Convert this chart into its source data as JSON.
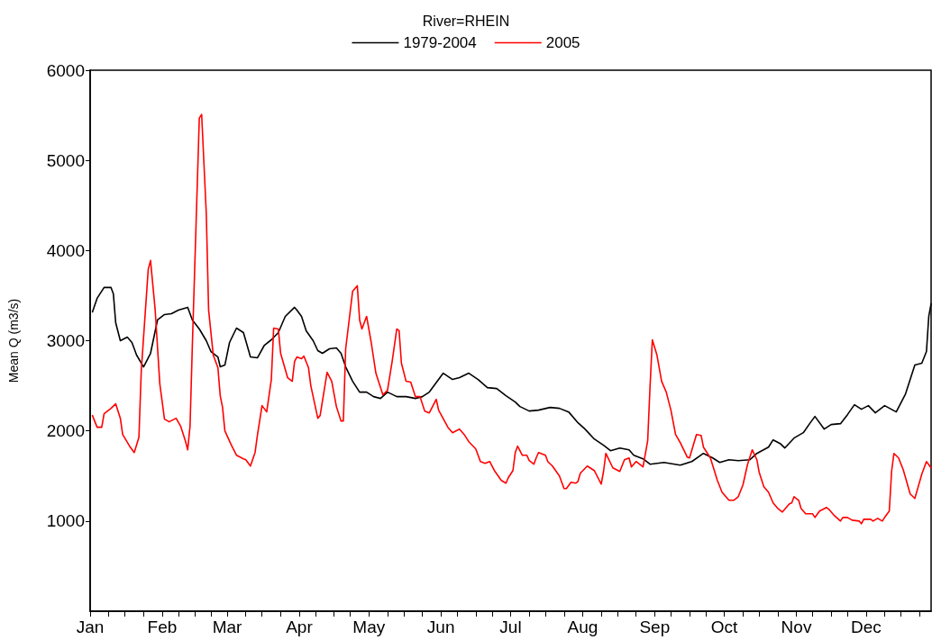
{
  "chart_data": {
    "type": "line",
    "legend_title": "River=RHEIN",
    "ylabel": "Mean Q (m3/s)",
    "xlim": [
      "--01-01",
      "--12-29"
    ],
    "xticks": [
      {
        "value": "--01-01",
        "label": "Jan"
      },
      {
        "value": "--01-09",
        "label": null
      },
      {
        "value": "--01-16",
        "label": null
      },
      {
        "value": "--01-24",
        "label": null
      },
      {
        "value": "--02-01",
        "label": "Feb"
      },
      {
        "value": "--02-08",
        "label": null
      },
      {
        "value": "--02-15",
        "label": null
      },
      {
        "value": "--02-22",
        "label": null
      },
      {
        "value": "--03-01",
        "label": "Mar"
      },
      {
        "value": "--03-09",
        "label": null
      },
      {
        "value": "--03-16",
        "label": null
      },
      {
        "value": "--03-24",
        "label": null
      },
      {
        "value": "--04-01",
        "label": "Apr"
      },
      {
        "value": "--04-08",
        "label": null
      },
      {
        "value": "--04-16",
        "label": null
      },
      {
        "value": "--04-23",
        "label": null
      },
      {
        "value": "--05-01",
        "label": "May"
      },
      {
        "value": "--05-09",
        "label": null
      },
      {
        "value": "--05-16",
        "label": null
      },
      {
        "value": "--05-24",
        "label": null
      },
      {
        "value": "--06-01",
        "label": "Jun"
      },
      {
        "value": "--06-08",
        "label": null
      },
      {
        "value": "--06-16",
        "label": null
      },
      {
        "value": "--06-23",
        "label": null
      },
      {
        "value": "--07-01",
        "label": "Jul"
      },
      {
        "value": "--07-09",
        "label": null
      },
      {
        "value": "--07-16",
        "label": null
      },
      {
        "value": "--07-24",
        "label": null
      },
      {
        "value": "--08-01",
        "label": "Aug"
      },
      {
        "value": "--08-09",
        "label": null
      },
      {
        "value": "--08-16",
        "label": null
      },
      {
        "value": "--08-24",
        "label": null
      },
      {
        "value": "--09-01",
        "label": "Sep"
      },
      {
        "value": "--09-08",
        "label": null
      },
      {
        "value": "--09-16",
        "label": null
      },
      {
        "value": "--09-23",
        "label": null
      },
      {
        "value": "--10-01",
        "label": "Oct"
      },
      {
        "value": "--10-09",
        "label": null
      },
      {
        "value": "--10-16",
        "label": null
      },
      {
        "value": "--10-24",
        "label": null
      },
      {
        "value": "--11-01",
        "label": "Nov"
      },
      {
        "value": "--11-08",
        "label": null
      },
      {
        "value": "--11-16",
        "label": null
      },
      {
        "value": "--11-23",
        "label": null
      },
      {
        "value": "--12-01",
        "label": "Dec"
      },
      {
        "value": "--12-09",
        "label": null
      },
      {
        "value": "--12-16",
        "label": null
      },
      {
        "value": "--12-24",
        "label": null
      }
    ],
    "ylim": [
      0,
      6000
    ],
    "yticks": [
      1000,
      2000,
      3000,
      4000,
      5000,
      6000
    ],
    "grid": false,
    "legend": "top",
    "marker": "none",
    "line_style": "solid",
    "series": [
      {
        "name": "1979-2004",
        "color": "#000000",
        "x": [
          "--01-02",
          "--01-04",
          "--01-07",
          "--01-10",
          "--01-11",
          "--01-12",
          "--01-14",
          "--01-17",
          "--01-19",
          "--01-21",
          "--01-24",
          "--01-27",
          "--01-30",
          "--02-02",
          "--02-05",
          "--02-08",
          "--02-12",
          "--02-14",
          "--02-17",
          "--02-20",
          "--02-22",
          "--02-25",
          "--02-26",
          "--02-28",
          "--03-02",
          "--03-05",
          "--03-08",
          "--03-11",
          "--03-14",
          "--03-17",
          "--03-20",
          "--03-23",
          "--03-26",
          "--03-30",
          "--03-31",
          "--04-02",
          "--04-04",
          "--04-07",
          "--04-09",
          "--04-11",
          "--04-14",
          "--04-17",
          "--04-19",
          "--04-21",
          "--04-24",
          "--04-27",
          "--04-30",
          "--05-03",
          "--05-06",
          "--05-09",
          "--05-13",
          "--05-17",
          "--05-21",
          "--05-24",
          "--05-27",
          "--05-31",
          "--06-02",
          "--06-06",
          "--06-09",
          "--06-13",
          "--06-17",
          "--06-21",
          "--06-25",
          "--06-29",
          "--07-03",
          "--07-05",
          "--07-09",
          "--07-13",
          "--07-18",
          "--07-22",
          "--07-26",
          "--07-30",
          "--08-02",
          "--08-06",
          "--08-10",
          "--08-13",
          "--08-17",
          "--08-21",
          "--08-23",
          "--08-27",
          "--08-30",
          "--09-05",
          "--09-12",
          "--09-17",
          "--09-22",
          "--09-26",
          "--09-29",
          "--10-03",
          "--10-07",
          "--10-12",
          "--10-15",
          "--10-20",
          "--10-22",
          "--10-25",
          "--10-27",
          "--10-31",
          "--11-04",
          "--11-07",
          "--11-09",
          "--11-13",
          "--11-16",
          "--11-20",
          "--11-23",
          "--11-26",
          "--11-29",
          "--12-02",
          "--12-05",
          "--12-09",
          "--12-14",
          "--12-18",
          "--12-22",
          "--12-25",
          "--12-27",
          "--12-28",
          "--12-29"
        ],
        "values": [
          3320,
          3470,
          3590,
          3590,
          3520,
          3200,
          3000,
          3040,
          2980,
          2840,
          2710,
          2860,
          3230,
          3290,
          3300,
          3340,
          3370,
          3230,
          3130,
          3000,
          2880,
          2820,
          2710,
          2730,
          2980,
          3140,
          3090,
          2820,
          2810,
          2950,
          3010,
          3090,
          3270,
          3370,
          3340,
          3270,
          3110,
          3000,
          2890,
          2860,
          2910,
          2920,
          2860,
          2710,
          2550,
          2430,
          2430,
          2380,
          2360,
          2430,
          2380,
          2380,
          2360,
          2380,
          2430,
          2570,
          2640,
          2570,
          2590,
          2640,
          2570,
          2480,
          2470,
          2390,
          2320,
          2270,
          2220,
          2230,
          2260,
          2250,
          2210,
          2090,
          2020,
          1910,
          1840,
          1780,
          1810,
          1790,
          1730,
          1690,
          1630,
          1650,
          1620,
          1660,
          1750,
          1700,
          1650,
          1680,
          1670,
          1680,
          1750,
          1820,
          1900,
          1860,
          1810,
          1920,
          1980,
          2090,
          2160,
          2020,
          2070,
          2080,
          2180,
          2290,
          2240,
          2280,
          2200,
          2280,
          2210,
          2410,
          2730,
          2750,
          2880,
          3270,
          3410
        ]
      },
      {
        "name": "2005",
        "color": "#ff0000",
        "x": [
          "--01-02",
          "--01-04",
          "--01-06",
          "--01-07",
          "--01-10",
          "--01-12",
          "--01-14",
          "--01-15",
          "--01-18",
          "--01-20",
          "--01-22",
          "--01-23",
          "--01-26",
          "--01-27",
          "--01-29",
          "--01-31",
          "--02-02",
          "--02-04",
          "--02-07",
          "--02-09",
          "--02-11",
          "--02-12",
          "--02-13",
          "--02-14",
          "--02-17",
          "--02-18",
          "--02-20",
          "--02-21",
          "--02-23",
          "--02-25",
          "--02-26",
          "--02-27",
          "--02-28",
          "--03-03",
          "--03-05",
          "--03-08",
          "--03-09",
          "--03-11",
          "--03-13",
          "--03-14",
          "--03-16",
          "--03-18",
          "--03-20",
          "--03-21",
          "--03-23",
          "--03-24",
          "--03-27",
          "--03-29",
          "--03-30",
          "--03-31",
          "--04-02",
          "--04-03",
          "--04-05",
          "--04-06",
          "--04-09",
          "--04-10",
          "--04-13",
          "--04-15",
          "--04-17",
          "--04-19",
          "--04-20",
          "--04-21",
          "--04-24",
          "--04-26",
          "--04-27",
          "--04-28",
          "--04-30",
          "--05-02",
          "--05-04",
          "--05-07",
          "--05-09",
          "--05-11",
          "--05-13",
          "--05-14",
          "--05-15",
          "--05-17",
          "--05-19",
          "--05-21",
          "--05-23",
          "--05-25",
          "--05-27",
          "--05-30",
          "--05-31",
          "--06-04",
          "--06-06",
          "--06-09",
          "--06-11",
          "--06-13",
          "--06-16",
          "--06-18",
          "--06-20",
          "--06-22",
          "--06-24",
          "--06-27",
          "--06-29",
          "--06-30",
          "--07-02",
          "--07-03",
          "--07-04",
          "--07-06",
          "--07-08",
          "--07-09",
          "--07-11",
          "--07-12",
          "--07-13",
          "--07-16",
          "--07-17",
          "--07-19",
          "--07-22",
          "--07-24",
          "--07-25",
          "--07-27",
          "--07-29",
          "--07-30",
          "--07-31",
          "--08-03",
          "--08-06",
          "--08-08",
          "--08-09",
          "--08-10",
          "--08-11",
          "--08-14",
          "--08-17",
          "--08-19",
          "--08-21",
          "--08-22",
          "--08-24",
          "--08-27",
          "--08-29",
          "--08-30",
          "--08-31",
          "--09-02",
          "--09-04",
          "--09-06",
          "--09-08",
          "--09-10",
          "--09-12",
          "--09-15",
          "--09-16",
          "--09-19",
          "--09-21",
          "--09-22",
          "--09-25",
          "--09-28",
          "--09-30",
          "--10-03",
          "--10-05",
          "--10-07",
          "--10-09",
          "--10-11",
          "--10-13",
          "--10-15",
          "--10-16",
          "--10-18",
          "--10-20",
          "--10-22",
          "--10-24",
          "--10-26",
          "--10-29",
          "--10-30",
          "--10-31",
          "--11-02",
          "--11-03",
          "--11-05",
          "--11-08",
          "--11-09",
          "--11-11",
          "--11-14",
          "--11-15",
          "--11-17",
          "--11-20",
          "--11-21",
          "--11-23",
          "--11-25",
          "--11-28",
          "--11-29",
          "--11-30",
          "--12-03",
          "--12-04",
          "--12-06",
          "--12-08",
          "--12-09",
          "--12-11",
          "--12-12",
          "--12-13",
          "--12-15",
          "--12-17",
          "--12-20",
          "--12-22",
          "--12-25",
          "--12-27",
          "--12-29"
        ],
        "values": [
          2170,
          2040,
          2040,
          2190,
          2250,
          2300,
          2140,
          1960,
          1830,
          1760,
          1930,
          2660,
          3790,
          3890,
          3340,
          2520,
          2130,
          2100,
          2140,
          2050,
          1890,
          1790,
          2050,
          2950,
          5470,
          5510,
          4410,
          3340,
          2840,
          2700,
          2390,
          2260,
          2000,
          1830,
          1730,
          1690,
          1680,
          1610,
          1760,
          1950,
          2280,
          2210,
          2570,
          3140,
          3130,
          2860,
          2590,
          2550,
          2770,
          2820,
          2800,
          2830,
          2700,
          2500,
          2140,
          2170,
          2650,
          2550,
          2270,
          2110,
          2110,
          2910,
          3550,
          3610,
          3230,
          3130,
          3270,
          2980,
          2640,
          2400,
          2450,
          2770,
          3130,
          3110,
          2750,
          2550,
          2540,
          2380,
          2380,
          2220,
          2200,
          2350,
          2230,
          2040,
          1980,
          2020,
          1960,
          1880,
          1800,
          1660,
          1640,
          1660,
          1560,
          1450,
          1420,
          1480,
          1560,
          1760,
          1830,
          1730,
          1730,
          1670,
          1630,
          1700,
          1760,
          1730,
          1660,
          1610,
          1500,
          1360,
          1360,
          1430,
          1420,
          1440,
          1530,
          1610,
          1560,
          1460,
          1410,
          1550,
          1750,
          1590,
          1550,
          1680,
          1700,
          1600,
          1660,
          1600,
          1890,
          2480,
          3010,
          2840,
          2550,
          2430,
          2230,
          1960,
          1870,
          1710,
          1700,
          1960,
          1950,
          1820,
          1700,
          1450,
          1320,
          1230,
          1230,
          1270,
          1400,
          1630,
          1790,
          1680,
          1540,
          1380,
          1320,
          1200,
          1140,
          1100,
          1190,
          1200,
          1270,
          1230,
          1140,
          1080,
          1080,
          1040,
          1110,
          1150,
          1130,
          1070,
          1000,
          1040,
          1040,
          1010,
          1000,
          970,
          1020,
          1020,
          1000,
          1030,
          1000,
          1040,
          1110,
          1550,
          1750,
          1700,
          1570,
          1300,
          1250,
          1520,
          1660,
          1590
        ]
      }
    ]
  }
}
